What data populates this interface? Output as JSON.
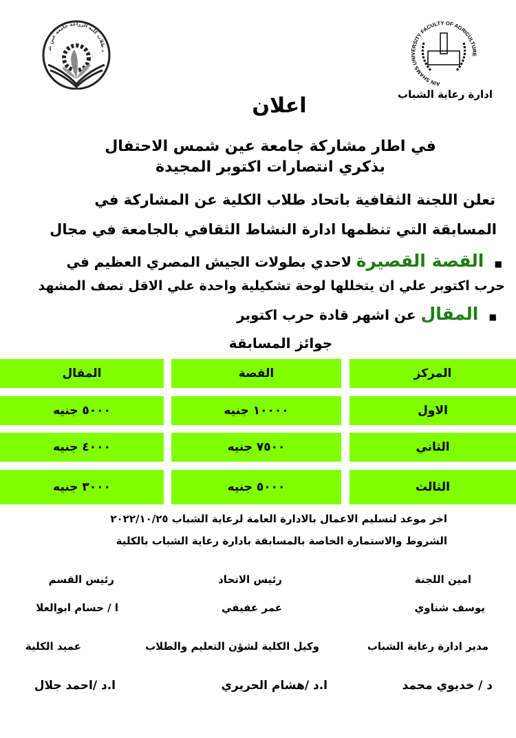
{
  "header": {
    "left_logo": {
      "icon": "student-union-emblem",
      "text": "اتحاد طلاب كلية الزراعة جامعة عين شمس"
    },
    "right_logo": {
      "icon": "ain-shams-university-seal",
      "text": "AIN SHAMS UNIVERSITY FACULTY OF AGRICULTURE"
    },
    "department": "ادارة رعاية الشباب"
  },
  "title": "اعلان",
  "subtitle": [
    "في اطار مشاركة جامعة عين شمس الاحتفال",
    "بذكري انتصارات اكتوبر المجيدة"
  ],
  "intro": [
    "تعلن اللجنة الثقافية باتحاد طلاب الكلية عن المشاركة في",
    "المسابقة التي تنظمها ادارة النشاط الثقافي بالجامعة في مجال"
  ],
  "items": [
    {
      "highlight": "القصة القصيرة",
      "text": "لاحدي بطولات الجيش المصري العظيم في",
      "continuation": "حرب اكتوبر علي ان يتخللها لوحة تشكيلية واحدة علي الاقل تصف المشهد"
    },
    {
      "highlight": "المقال",
      "text": "عن اشهر قادة حرب اكتوبر"
    }
  ],
  "prizes": {
    "title": "جوائز المسابقة",
    "headers": [
      "المركز",
      "القصة",
      "المقال"
    ],
    "rows": [
      [
        "الاول",
        "١٠٠٠٠ جنيه",
        "٥٠٠٠ جنيه"
      ],
      [
        "الثاني",
        "٧٥٠٠ جنيه",
        "٤٠٠٠ جنيه"
      ],
      [
        "الثالث",
        "٥٠٠٠ جنيه",
        "٣٠٠٠ جنيه"
      ]
    ]
  },
  "deadline": "اخر موعد لتسليم الاعمال بالادارة العامة لرعاية الشباب ٢٠٢٢/١٠/٢٥",
  "conditions": "الشروط والاستمارة الخاصة بالمسابقة بادارة رعاية الشباب بالكلية",
  "signatures": [
    {
      "role": "امين اللجنة",
      "name": "يوسف شناوي"
    },
    {
      "role": "رئيس الاتحاد",
      "name": "عمر عفيفي"
    },
    {
      "role": "رئيس القسم",
      "name": "ا / حسام ابوالعلا"
    },
    {
      "role": "مدير ادارة رعاية الشباب",
      "name": "د / خديوي محمد"
    },
    {
      "role": "وكيل الكلية لشؤن التعليم والطلاب",
      "name": "ا.د /هشام الحريري"
    },
    {
      "role": "عميد الكلية",
      "name": "ا.د /احمد جلال"
    }
  ],
  "colors": {
    "table_fill": "#80ff00",
    "highlight_text": "#1e7d12"
  }
}
